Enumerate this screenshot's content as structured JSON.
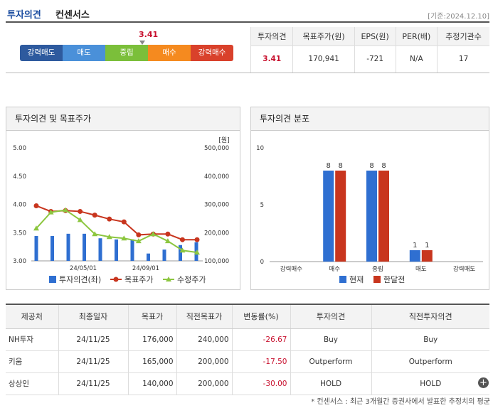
{
  "header": {
    "title1": "투자의견",
    "title2": "컨센서스",
    "date": "[기준:2024.12.10]"
  },
  "gauge": {
    "value_label": "3.41",
    "segments": [
      {
        "label": "강력매도",
        "color": "#2e5a9e"
      },
      {
        "label": "매도",
        "color": "#4a90d9"
      },
      {
        "label": "중립",
        "color": "#7bbf3a"
      },
      {
        "label": "매수",
        "color": "#f58a1f"
      },
      {
        "label": "강력매수",
        "color": "#d9412b"
      }
    ]
  },
  "summary": {
    "headers": [
      "투자의견",
      "목표주가(원)",
      "EPS(원)",
      "PER(배)",
      "추정기관수"
    ],
    "values": [
      "3.41",
      "170,941",
      "-721",
      "N/A",
      "17"
    ]
  },
  "chart_left": {
    "title": "투자의견 및 목표주가",
    "unit": "[원]",
    "legend": [
      "투자의견(좌)",
      "목표주가",
      "수정주가"
    ],
    "chart_data": {
      "type": "bar+line",
      "left_axis": {
        "ticks": [
          "5.00",
          "4.50",
          "4.00",
          "3.50",
          "3.00"
        ],
        "ylim": [
          3.0,
          5.0
        ]
      },
      "right_axis": {
        "ticks": [
          "500,000",
          "400,000",
          "300,000",
          "200,000",
          "100,000"
        ],
        "ylim": [
          100000,
          500000
        ]
      },
      "x_ticks": [
        "24/05/01",
        "24/09/01"
      ],
      "series": [
        {
          "name": "투자의견(좌)",
          "type": "bar",
          "values": [
            3.44,
            3.44,
            3.48,
            3.48,
            3.4,
            3.38,
            3.38,
            3.13,
            3.2,
            3.28,
            3.33
          ]
        },
        {
          "name": "목표주가",
          "type": "line",
          "values": [
            295000,
            275000,
            278000,
            275000,
            262000,
            248000,
            238000,
            192000,
            195000,
            195000,
            175000,
            175000
          ]
        },
        {
          "name": "수정주가",
          "type": "line",
          "values": [
            215000,
            272000,
            280000,
            245000,
            195000,
            185000,
            180000,
            170000,
            195000,
            170000,
            137000,
            130000
          ]
        }
      ],
      "colors": {
        "bar": "#2f6fd1",
        "target": "#c8351e",
        "price": "#8cc63f"
      }
    }
  },
  "chart_right": {
    "title": "투자의견 분포",
    "legend": [
      "현재",
      "한달전"
    ],
    "chart_data": {
      "type": "bar",
      "categories": [
        "강력매수",
        "매수",
        "중립",
        "매도",
        "강력매도"
      ],
      "series": [
        {
          "name": "현재",
          "values": [
            0,
            8,
            8,
            1,
            0
          ]
        },
        {
          "name": "한달전",
          "values": [
            0,
            8,
            8,
            1,
            0
          ]
        }
      ],
      "y_ticks": [
        "10",
        "5",
        "0"
      ],
      "ylim": [
        0,
        10
      ],
      "colors": {
        "현재": "#2f6fd1",
        "한달전": "#c8351e"
      }
    }
  },
  "brokers": {
    "headers": [
      "제공처",
      "최종일자",
      "목표가",
      "직전목표가",
      "변동률(%)",
      "투자의견",
      "직전투자의견"
    ],
    "rows": [
      [
        "NH투자",
        "24/11/25",
        "176,000",
        "240,000",
        "-26.67",
        "Buy",
        "Buy"
      ],
      [
        "키움",
        "24/11/25",
        "165,000",
        "200,000",
        "-17.50",
        "Outperform",
        "Outperform"
      ],
      [
        "상상인",
        "24/11/25",
        "140,000",
        "200,000",
        "-30.00",
        "HOLD",
        "HOLD"
      ]
    ]
  },
  "footnote": "* 컨센서스 : 최근 3개월간 증권사에서 발표한 추정치의 평균"
}
